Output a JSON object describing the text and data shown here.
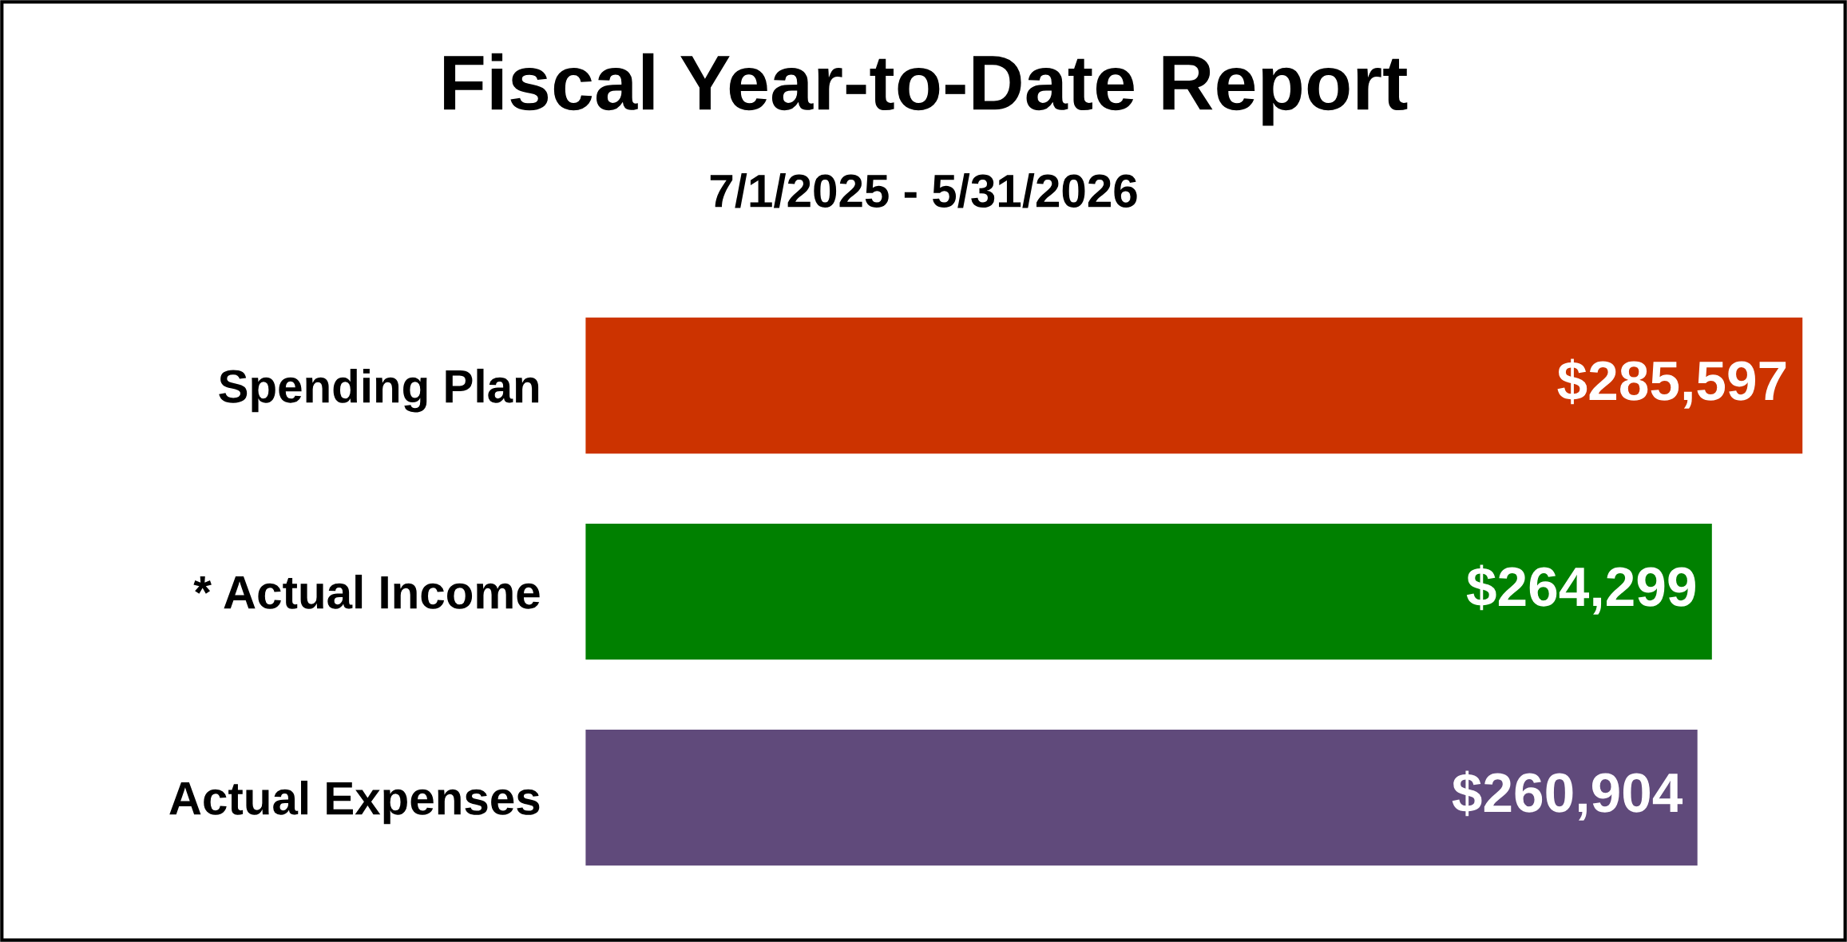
{
  "chart_data": {
    "type": "bar",
    "orientation": "horizontal",
    "title": "Fiscal Year-to-Date Report",
    "subtitle": "7/1/2025 - 5/31/2026",
    "categories": [
      "Spending Plan",
      "* Actual Income",
      "Actual Expenses"
    ],
    "values": [
      285597,
      264299,
      260904
    ],
    "colors": [
      "#cc3300",
      "#008000",
      "#604a7b"
    ],
    "value_labels": [
      "$285,597",
      "$264,299",
      "$260,904"
    ],
    "tick_labels": "y",
    "grid": false,
    "legend": false
  }
}
